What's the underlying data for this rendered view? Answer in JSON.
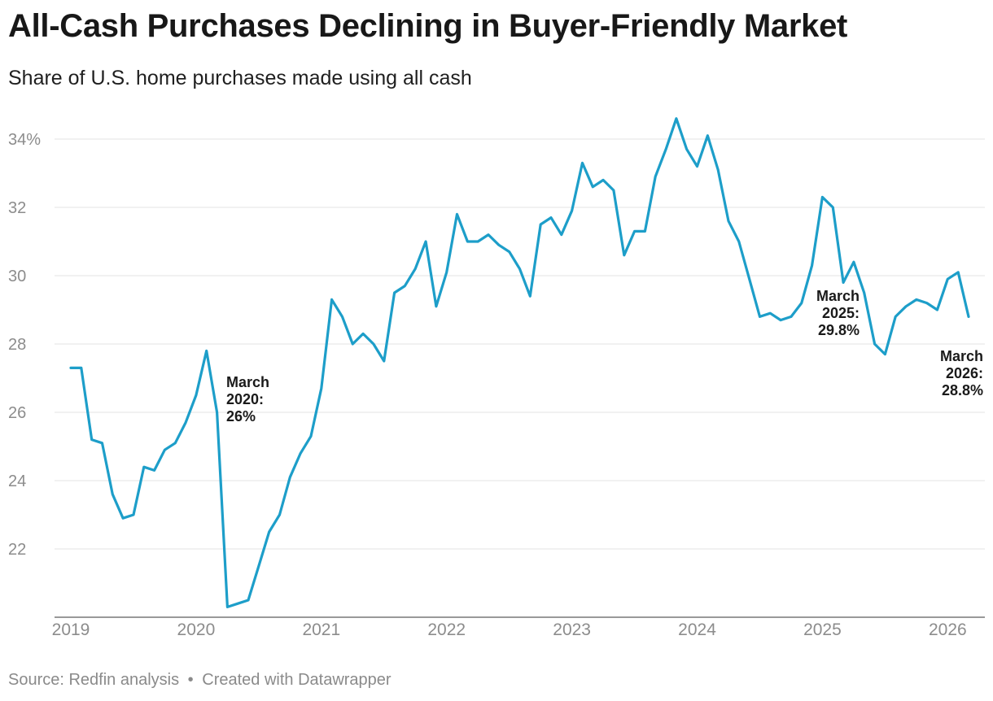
{
  "header": {
    "title": "All-Cash Purchases Declining in Buyer-Friendly Market",
    "subtitle": "Share of U.S. home purchases made using all cash"
  },
  "footer": {
    "source": "Source: Redfin analysis",
    "separator": "•",
    "credit": "Created with Datawrapper"
  },
  "colors": {
    "line": "#1d9ec9",
    "grid": "#e3e3e3",
    "tick_text": "#8c8c8c"
  },
  "chart_data": {
    "type": "line",
    "title": "All-Cash Purchases Declining in Buyer-Friendly Market",
    "subtitle": "Share of U.S. home purchases made using all cash",
    "ylabel": "",
    "xlabel": "",
    "ylim": [
      20,
      35
    ],
    "xlim": [
      "2019-01",
      "2026-03"
    ],
    "y_ticks": [
      {
        "value": 22,
        "label": "22"
      },
      {
        "value": 24,
        "label": "24"
      },
      {
        "value": 26,
        "label": "26"
      },
      {
        "value": 28,
        "label": "28"
      },
      {
        "value": 30,
        "label": "30"
      },
      {
        "value": 32,
        "label": "32"
      },
      {
        "value": 34,
        "label": "34%"
      }
    ],
    "x_ticks": [
      {
        "value": "2019-01",
        "label": "2019"
      },
      {
        "value": "2020-01",
        "label": "2020"
      },
      {
        "value": "2021-01",
        "label": "2021"
      },
      {
        "value": "2022-01",
        "label": "2022"
      },
      {
        "value": "2023-01",
        "label": "2023"
      },
      {
        "value": "2024-01",
        "label": "2024"
      },
      {
        "value": "2025-01",
        "label": "2025"
      },
      {
        "value": "2026-01",
        "label": "2026"
      }
    ],
    "grid": true,
    "series": [
      {
        "x": [
          "2019-01",
          "2019-02",
          "2019-03",
          "2019-04",
          "2019-05",
          "2019-06",
          "2019-07",
          "2019-08",
          "2019-09",
          "2019-10",
          "2019-11",
          "2019-12",
          "2020-01",
          "2020-02",
          "2020-03",
          "2020-04",
          "2020-05",
          "2020-06",
          "2020-07",
          "2020-08",
          "2020-09",
          "2020-10",
          "2020-11",
          "2020-12",
          "2021-01",
          "2021-02",
          "2021-03",
          "2021-04",
          "2021-05",
          "2021-06",
          "2021-07",
          "2021-08",
          "2021-09",
          "2021-10",
          "2021-11",
          "2021-12",
          "2022-01",
          "2022-02",
          "2022-03",
          "2022-04",
          "2022-05",
          "2022-06",
          "2022-07",
          "2022-08",
          "2022-09",
          "2022-10",
          "2022-11",
          "2022-12",
          "2023-01",
          "2023-02",
          "2023-03",
          "2023-04",
          "2023-05",
          "2023-06",
          "2023-07",
          "2023-08",
          "2023-09",
          "2023-10",
          "2023-11",
          "2023-12",
          "2024-01",
          "2024-02",
          "2024-03",
          "2024-04",
          "2024-05",
          "2024-06",
          "2024-07",
          "2024-08",
          "2024-09",
          "2024-10",
          "2024-11",
          "2024-12",
          "2025-01",
          "2025-02",
          "2025-03",
          "2025-04",
          "2025-05",
          "2025-06",
          "2025-07",
          "2025-08",
          "2025-09",
          "2025-10",
          "2025-11",
          "2025-12",
          "2026-01",
          "2026-02",
          "2026-03"
        ],
        "values": [
          27.3,
          27.3,
          25.2,
          25.1,
          23.6,
          22.9,
          23.0,
          24.4,
          24.3,
          24.9,
          25.1,
          25.7,
          26.5,
          27.8,
          26.0,
          20.3,
          20.4,
          20.5,
          21.5,
          22.5,
          23.0,
          24.1,
          24.8,
          25.3,
          26.7,
          29.3,
          28.8,
          28.0,
          28.3,
          28.0,
          27.5,
          29.5,
          29.7,
          30.2,
          31.0,
          29.1,
          30.1,
          31.8,
          31.0,
          31.0,
          31.2,
          30.9,
          30.7,
          30.2,
          29.4,
          31.5,
          31.7,
          31.2,
          31.9,
          33.3,
          32.6,
          32.8,
          32.5,
          30.6,
          31.3,
          31.3,
          32.9,
          33.7,
          34.6,
          33.7,
          33.2,
          34.1,
          33.1,
          31.6,
          31.0,
          29.9,
          28.8,
          28.9,
          28.7,
          28.8,
          29.2,
          30.3,
          32.3,
          32.0,
          29.8,
          30.4,
          29.5,
          28.0,
          27.7,
          28.8,
          29.1,
          29.3,
          29.2,
          29.0,
          29.9,
          30.1,
          28.8
        ]
      }
    ],
    "annotations": [
      {
        "x": "2020-03",
        "value": 26.0,
        "lines": [
          "March",
          "2020:",
          "26%"
        ],
        "anchor": "left"
      },
      {
        "x": "2025-03",
        "value": 29.8,
        "lines": [
          "March",
          "2025:",
          "29.8%"
        ],
        "anchor": "right"
      },
      {
        "x": "2026-03",
        "value": 28.8,
        "lines": [
          "March",
          "2026:",
          "28.8%"
        ],
        "anchor": "right"
      }
    ]
  }
}
